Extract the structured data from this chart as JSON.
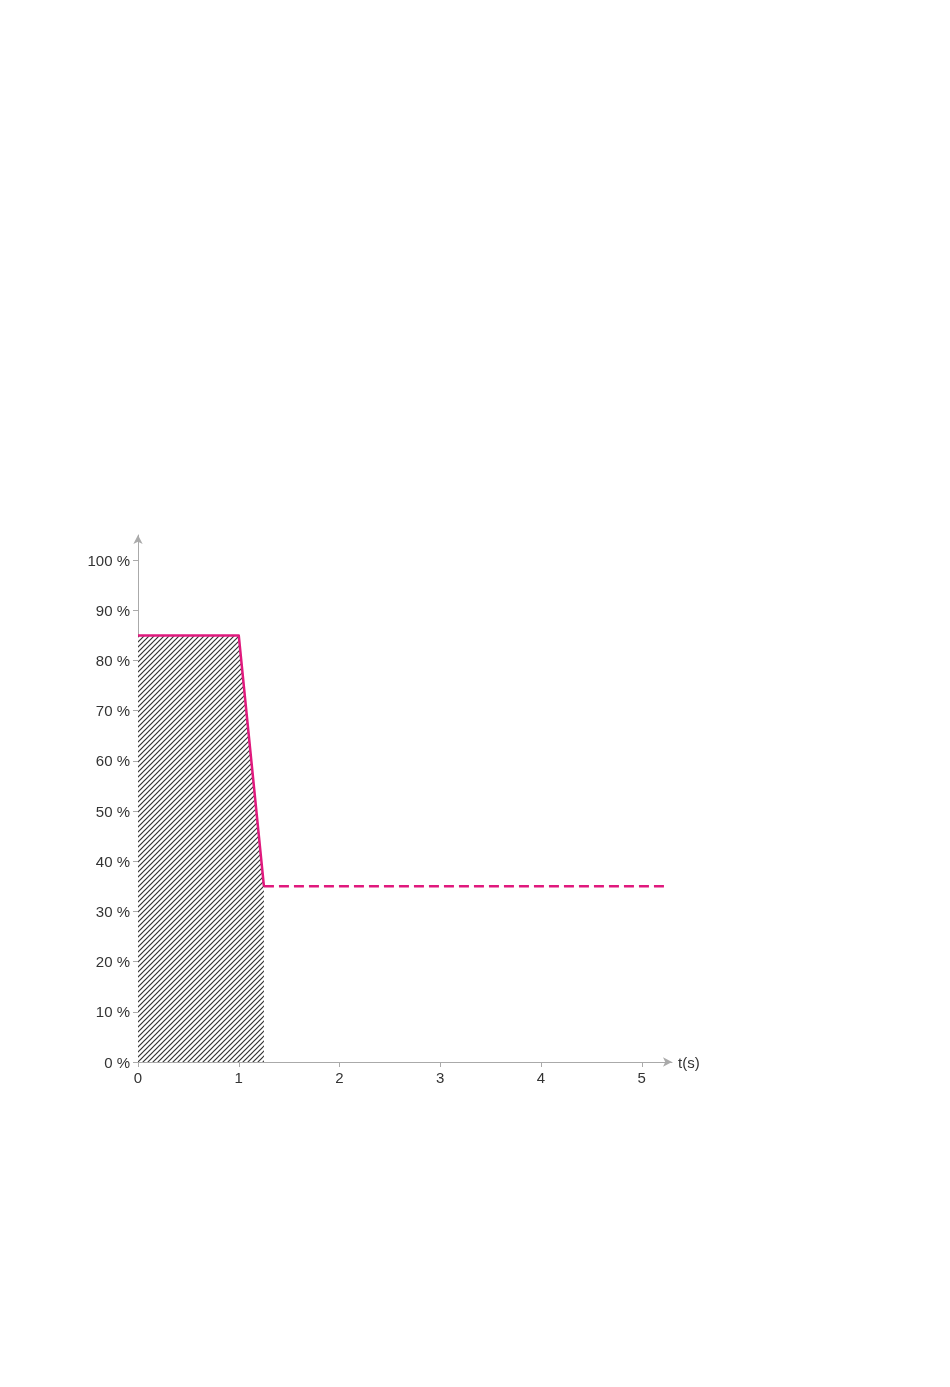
{
  "chart_data": {
    "type": "line",
    "xlabel": "t(s)",
    "xlim": [
      0,
      5.3
    ],
    "xticks": [
      0,
      1,
      2,
      3,
      4,
      5
    ],
    "ylim": [
      0,
      105
    ],
    "yticks": [
      {
        "value": 0,
        "label": "0 %"
      },
      {
        "value": 10,
        "label": "10 %"
      },
      {
        "value": 20,
        "label": "20 %"
      },
      {
        "value": 30,
        "label": "30 %"
      },
      {
        "value": 40,
        "label": "40 %"
      },
      {
        "value": 50,
        "label": "50 %"
      },
      {
        "value": 60,
        "label": "60 %"
      },
      {
        "value": 70,
        "label": "70 %"
      },
      {
        "value": 80,
        "label": "80 %"
      },
      {
        "value": 90,
        "label": "90 %"
      },
      {
        "value": 100,
        "label": "100 %"
      }
    ],
    "grid": false,
    "marker": "none",
    "series": [
      {
        "type": "area",
        "color": "#e0197d",
        "line_style": "solid",
        "x": [
          0,
          1,
          1.25
        ],
        "values": [
          85,
          85,
          35
        ]
      },
      {
        "color": "#e0197d",
        "line_style": "dashed",
        "x": [
          1.25,
          5.23
        ],
        "values": [
          35,
          35
        ]
      }
    ]
  }
}
